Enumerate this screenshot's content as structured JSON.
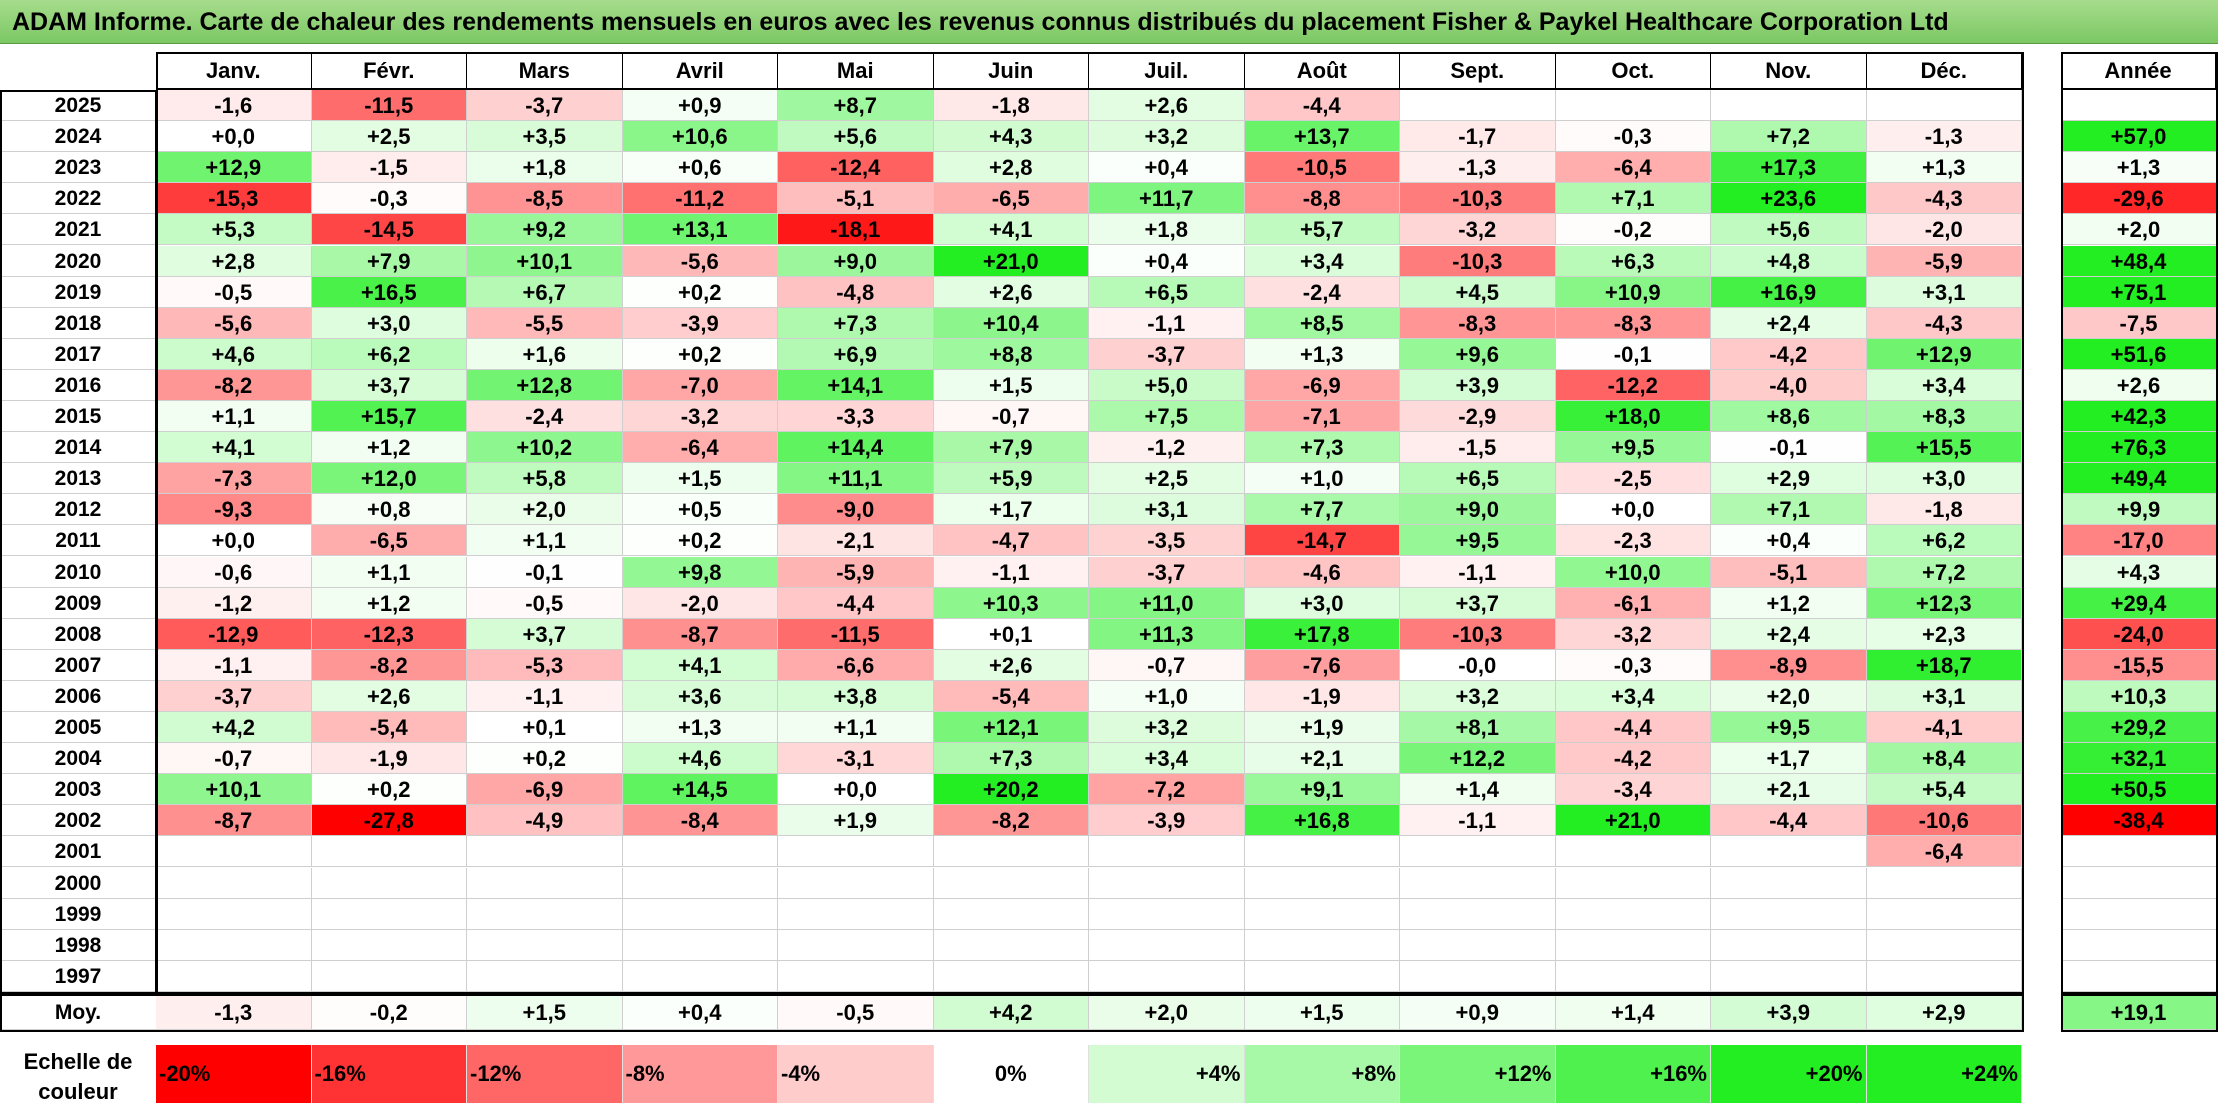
{
  "title": "ADAM Informe. Carte de chaleur des rendements mensuels en euros avec les revenus connus distribués du placement Fisher & Paykel Healthcare Corporation Ltd",
  "chart_data": {
    "type": "heatmap",
    "months": [
      "Janv.",
      "Févr.",
      "Mars",
      "Avril",
      "Mai",
      "Juin",
      "Juil.",
      "Août",
      "Sept.",
      "Oct.",
      "Nov.",
      "Déc."
    ],
    "year_header": "Année",
    "rows": [
      {
        "year": "2025",
        "values": [
          "-1,6",
          "-11,5",
          "-3,7",
          "+0,9",
          "+8,7",
          "-1,8",
          "+2,6",
          "-4,4",
          "",
          "",
          "",
          ""
        ],
        "annual": ""
      },
      {
        "year": "2024",
        "values": [
          "+0,0",
          "+2,5",
          "+3,5",
          "+10,6",
          "+5,6",
          "+4,3",
          "+3,2",
          "+13,7",
          "-1,7",
          "-0,3",
          "+7,2",
          "-1,3"
        ],
        "annual": "+57,0"
      },
      {
        "year": "2023",
        "values": [
          "+12,9",
          "-1,5",
          "+1,8",
          "+0,6",
          "-12,4",
          "+2,8",
          "+0,4",
          "-10,5",
          "-1,3",
          "-6,4",
          "+17,3",
          "+1,3"
        ],
        "annual": "+1,3"
      },
      {
        "year": "2022",
        "values": [
          "-15,3",
          "-0,3",
          "-8,5",
          "-11,2",
          "-5,1",
          "-6,5",
          "+11,7",
          "-8,8",
          "-10,3",
          "+7,1",
          "+23,6",
          "-4,3"
        ],
        "annual": "-29,6"
      },
      {
        "year": "2021",
        "values": [
          "+5,3",
          "-14,5",
          "+9,2",
          "+13,1",
          "-18,1",
          "+4,1",
          "+1,8",
          "+5,7",
          "-3,2",
          "-0,2",
          "+5,6",
          "-2,0"
        ],
        "annual": "+2,0"
      },
      {
        "year": "2020",
        "values": [
          "+2,8",
          "+7,9",
          "+10,1",
          "-5,6",
          "+9,0",
          "+21,0",
          "+0,4",
          "+3,4",
          "-10,3",
          "+6,3",
          "+4,8",
          "-5,9"
        ],
        "annual": "+48,4"
      },
      {
        "year": "2019",
        "values": [
          "-0,5",
          "+16,5",
          "+6,7",
          "+0,2",
          "-4,8",
          "+2,6",
          "+6,5",
          "-2,4",
          "+4,5",
          "+10,9",
          "+16,9",
          "+3,1"
        ],
        "annual": "+75,1"
      },
      {
        "year": "2018",
        "values": [
          "-5,6",
          "+3,0",
          "-5,5",
          "-3,9",
          "+7,3",
          "+10,4",
          "-1,1",
          "+8,5",
          "-8,3",
          "-8,3",
          "+2,4",
          "-4,3"
        ],
        "annual": "-7,5"
      },
      {
        "year": "2017",
        "values": [
          "+4,6",
          "+6,2",
          "+1,6",
          "+0,2",
          "+6,9",
          "+8,8",
          "-3,7",
          "+1,3",
          "+9,6",
          "-0,1",
          "-4,2",
          "+12,9"
        ],
        "annual": "+51,6"
      },
      {
        "year": "2016",
        "values": [
          "-8,2",
          "+3,7",
          "+12,8",
          "-7,0",
          "+14,1",
          "+1,5",
          "+5,0",
          "-6,9",
          "+3,9",
          "-12,2",
          "-4,0",
          "+3,4"
        ],
        "annual": "+2,6"
      },
      {
        "year": "2015",
        "values": [
          "+1,1",
          "+15,7",
          "-2,4",
          "-3,2",
          "-3,3",
          "-0,7",
          "+7,5",
          "-7,1",
          "-2,9",
          "+18,0",
          "+8,6",
          "+8,3"
        ],
        "annual": "+42,3"
      },
      {
        "year": "2014",
        "values": [
          "+4,1",
          "+1,2",
          "+10,2",
          "-6,4",
          "+14,4",
          "+7,9",
          "-1,2",
          "+7,3",
          "-1,5",
          "+9,5",
          "-0,1",
          "+15,5"
        ],
        "annual": "+76,3"
      },
      {
        "year": "2013",
        "values": [
          "-7,3",
          "+12,0",
          "+5,8",
          "+1,5",
          "+11,1",
          "+5,9",
          "+2,5",
          "+1,0",
          "+6,5",
          "-2,5",
          "+2,9",
          "+3,0"
        ],
        "annual": "+49,4"
      },
      {
        "year": "2012",
        "values": [
          "-9,3",
          "+0,8",
          "+2,0",
          "+0,5",
          "-9,0",
          "+1,7",
          "+3,1",
          "+7,7",
          "+9,0",
          "+0,0",
          "+7,1",
          "-1,8"
        ],
        "annual": "+9,9"
      },
      {
        "year": "2011",
        "values": [
          "+0,0",
          "-6,5",
          "+1,1",
          "+0,2",
          "-2,1",
          "-4,7",
          "-3,5",
          "-14,7",
          "+9,5",
          "-2,3",
          "+0,4",
          "+6,2"
        ],
        "annual": "-17,0"
      },
      {
        "year": "2010",
        "values": [
          "-0,6",
          "+1,1",
          "-0,1",
          "+9,8",
          "-5,9",
          "-1,1",
          "-3,7",
          "-4,6",
          "-1,1",
          "+10,0",
          "-5,1",
          "+7,2"
        ],
        "annual": "+4,3"
      },
      {
        "year": "2009",
        "values": [
          "-1,2",
          "+1,2",
          "-0,5",
          "-2,0",
          "-4,4",
          "+10,3",
          "+11,0",
          "+3,0",
          "+3,7",
          "-6,1",
          "+1,2",
          "+12,3"
        ],
        "annual": "+29,4"
      },
      {
        "year": "2008",
        "values": [
          "-12,9",
          "-12,3",
          "+3,7",
          "-8,7",
          "-11,5",
          "+0,1",
          "+11,3",
          "+17,8",
          "-10,3",
          "-3,2",
          "+2,4",
          "+2,3"
        ],
        "annual": "-24,0"
      },
      {
        "year": "2007",
        "values": [
          "-1,1",
          "-8,2",
          "-5,3",
          "+4,1",
          "-6,6",
          "+2,6",
          "-0,7",
          "-7,6",
          "-0,0",
          "-0,3",
          "-8,9",
          "+18,7"
        ],
        "annual": "-15,5"
      },
      {
        "year": "2006",
        "values": [
          "-3,7",
          "+2,6",
          "-1,1",
          "+3,6",
          "+3,8",
          "-5,4",
          "+1,0",
          "-1,9",
          "+3,2",
          "+3,4",
          "+2,0",
          "+3,1"
        ],
        "annual": "+10,3"
      },
      {
        "year": "2005",
        "values": [
          "+4,2",
          "-5,4",
          "+0,1",
          "+1,3",
          "+1,1",
          "+12,1",
          "+3,2",
          "+1,9",
          "+8,1",
          "-4,4",
          "+9,5",
          "-4,1"
        ],
        "annual": "+29,2"
      },
      {
        "year": "2004",
        "values": [
          "-0,7",
          "-1,9",
          "+0,2",
          "+4,6",
          "-3,1",
          "+7,3",
          "+3,4",
          "+2,1",
          "+12,2",
          "-4,2",
          "+1,7",
          "+8,4"
        ],
        "annual": "+32,1"
      },
      {
        "year": "2003",
        "values": [
          "+10,1",
          "+0,2",
          "-6,9",
          "+14,5",
          "+0,0",
          "+20,2",
          "-7,2",
          "+9,1",
          "+1,4",
          "-3,4",
          "+2,1",
          "+5,4"
        ],
        "annual": "+50,5"
      },
      {
        "year": "2002",
        "values": [
          "-8,7",
          "-27,8",
          "-4,9",
          "-8,4",
          "+1,9",
          "-8,2",
          "-3,9",
          "+16,8",
          "-1,1",
          "+21,0",
          "-4,4",
          "-10,6"
        ],
        "annual": "-38,4"
      },
      {
        "year": "2001",
        "values": [
          "",
          "",
          "",
          "",
          "",
          "",
          "",
          "",
          "",
          "",
          "",
          "-6,4"
        ],
        "annual": ""
      },
      {
        "year": "2000",
        "values": [
          "",
          "",
          "",
          "",
          "",
          "",
          "",
          "",
          "",
          "",
          "",
          ""
        ],
        "annual": ""
      },
      {
        "year": "1999",
        "values": [
          "",
          "",
          "",
          "",
          "",
          "",
          "",
          "",
          "",
          "",
          "",
          ""
        ],
        "annual": ""
      },
      {
        "year": "1998",
        "values": [
          "",
          "",
          "",
          "",
          "",
          "",
          "",
          "",
          "",
          "",
          "",
          ""
        ],
        "annual": ""
      },
      {
        "year": "1997",
        "values": [
          "",
          "",
          "",
          "",
          "",
          "",
          "",
          "",
          "",
          "",
          "",
          ""
        ],
        "annual": ""
      }
    ],
    "average": {
      "label": "Moy.",
      "values": [
        "-1,3",
        "-0,2",
        "+1,5",
        "+0,4",
        "-0,5",
        "+4,2",
        "+2,0",
        "+1,5",
        "+0,9",
        "+1,4",
        "+3,9",
        "+2,9"
      ],
      "annual": "+19,1"
    },
    "scale": {
      "label": "Echelle de couleur",
      "stops": [
        {
          "label": "-20%",
          "value": -20
        },
        {
          "label": "-16%",
          "value": -16
        },
        {
          "label": "-12%",
          "value": -12
        },
        {
          "label": "-8%",
          "value": -8
        },
        {
          "label": "-4%",
          "value": -4
        },
        {
          "label": "0%",
          "value": 0
        },
        {
          "label": "+4%",
          "value": 4
        },
        {
          "label": "+8%",
          "value": 8
        },
        {
          "label": "+12%",
          "value": 12
        },
        {
          "label": "+16%",
          "value": 16
        },
        {
          "label": "+20%",
          "value": 20
        },
        {
          "label": "+24%",
          "value": 24
        }
      ]
    },
    "colors": {
      "negative_max": "#ff0000",
      "neutral": "#ffffff",
      "positive_max": "#22ee22"
    }
  }
}
